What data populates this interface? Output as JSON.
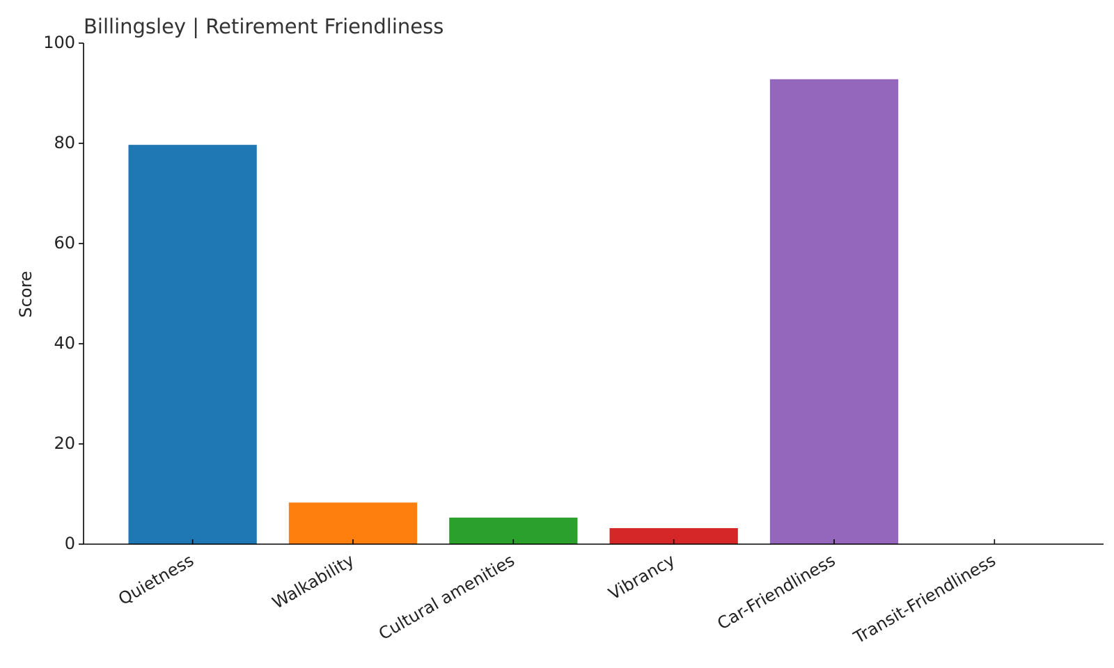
{
  "chart_data": {
    "type": "bar",
    "title": "Billingsley | Retirement Friendliness",
    "y_label": "Score",
    "categories": [
      "Quietness",
      "Walkability",
      "Cultural amenities",
      "Vibrancy",
      "Car-Friendliness",
      "Transit-Friendliness"
    ],
    "values": [
      79.7,
      8.3,
      5.3,
      3.2,
      92.8,
      0
    ],
    "colors": [
      "#1f77b4",
      "#ff7f0e",
      "#2ca02c",
      "#d62728",
      "#9467bd",
      "#8c564b"
    ],
    "ylim": [
      0,
      100
    ],
    "yticks": [
      0,
      20,
      40,
      60,
      80,
      100
    ],
    "grid": false
  }
}
